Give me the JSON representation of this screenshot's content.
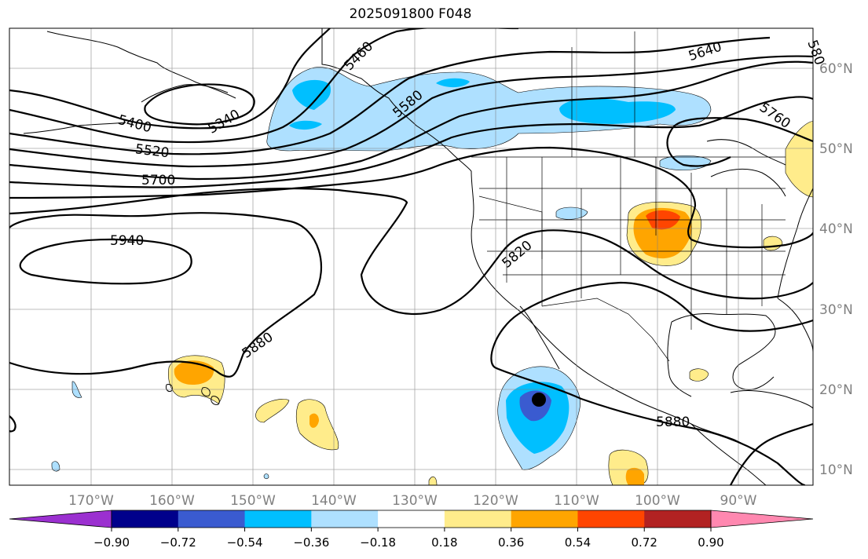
{
  "title": "2025091800 F048",
  "lon_labels": [
    "170°W",
    "160°W",
    "150°W",
    "140°W",
    "130°W",
    "120°W",
    "110°W",
    "100°W",
    "90°W"
  ],
  "lat_labels": [
    "60°N",
    "50°N",
    "40°N",
    "30°N",
    "20°N",
    "10°N"
  ],
  "contour_labels": [
    "5340",
    "5400",
    "5460",
    "5520",
    "5580",
    "5640",
    "5700",
    "5760",
    "5820",
    "5880",
    "5880",
    "5940"
  ],
  "colorbar": {
    "tick_labels": [
      "−0.90",
      "−0.72",
      "−0.54",
      "−0.36",
      "−0.18",
      "0.18",
      "0.36",
      "0.54",
      "0.72",
      "0.90"
    ],
    "colors": [
      "#9b30d0",
      "#00008b",
      "#3a5bd0",
      "#00bfff",
      "#aee0ff",
      "#ffffff",
      "#ffec8b",
      "#ffa500",
      "#ff4500",
      "#b22222",
      "#ff88b0"
    ]
  }
}
